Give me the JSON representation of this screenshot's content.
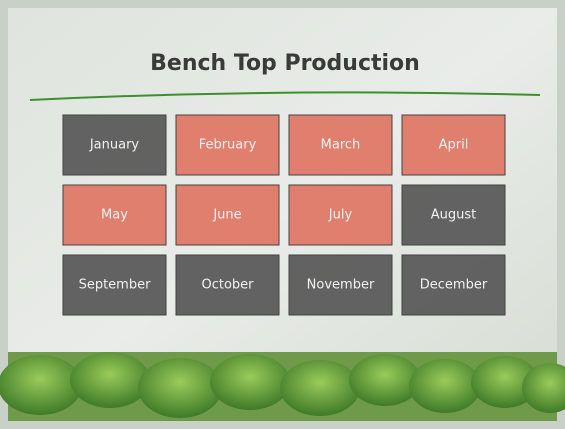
{
  "title": "Bench Top Production",
  "months": [
    {
      "label": "January",
      "color": "#5b5b5b"
    },
    {
      "label": "February",
      "color": "#e07a68"
    },
    {
      "label": "March",
      "color": "#e07a68"
    },
    {
      "label": "April",
      "color": "#e07a68"
    },
    {
      "label": "May",
      "color": "#e07a68"
    },
    {
      "label": "June",
      "color": "#e07a68"
    },
    {
      "label": "July",
      "color": "#e07a68"
    },
    {
      "label": "August",
      "color": "#5b5b5b"
    },
    {
      "label": "September",
      "color": "#5b5b5b"
    },
    {
      "label": "October",
      "color": "#5b5b5b"
    },
    {
      "label": "November",
      "color": "#5b5b5b"
    },
    {
      "label": "December",
      "color": "#5b5b5b"
    }
  ]
}
